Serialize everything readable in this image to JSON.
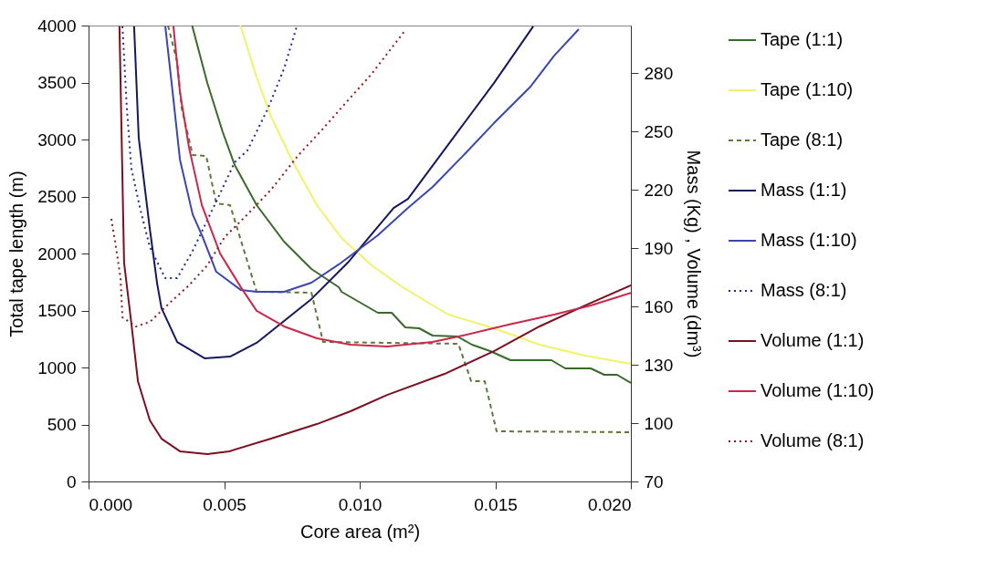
{
  "chart_data": {
    "type": "line",
    "xlabel": "Core area (m²)",
    "ylabel": "Total tape length (m)",
    "y2label": "Mass (Kg) , Volume (dm³)",
    "xlim": [
      0,
      0.02
    ],
    "xticks": [
      {
        "value": 0,
        "label": "0.000"
      },
      {
        "value": 0.005,
        "label": "0.005"
      },
      {
        "value": 0.01,
        "label": "0.010"
      },
      {
        "value": 0.015,
        "label": "0.015"
      },
      {
        "value": 0.02,
        "label": "0.020"
      }
    ],
    "ylim": [
      0,
      4000
    ],
    "yticks": [
      0,
      500,
      1000,
      1500,
      2000,
      2500,
      3000,
      3500,
      4000
    ],
    "y2lim": [
      70,
      304.4
    ],
    "y2ticks": [
      70,
      100,
      130,
      160,
      190,
      220,
      250,
      280
    ],
    "grid": false,
    "legend": "right",
    "series": [
      {
        "name": "Tape (1:1)",
        "color": "#3a6a2a",
        "line_style": "solid",
        "x": [
          0.00382,
          0.00438,
          0.00495,
          0.00539,
          0.0062,
          0.00721,
          0.00822,
          0.00923,
          0.00933,
          0.01067,
          0.01118,
          0.01168,
          0.01219,
          0.01269,
          0.0136,
          0.01414,
          0.01481,
          0.01556,
          0.01707,
          0.01758,
          0.01852,
          0.01902,
          0.01949,
          0.02
        ],
        "values": [
          4000,
          3496,
          3064,
          2776,
          2424,
          2104,
          1864,
          1704,
          1664,
          1480,
          1480,
          1352,
          1344,
          1280,
          1272,
          1200,
          1144,
          1064,
          1064,
          992,
          992,
          936,
          936,
          864
        ]
      },
      {
        "name": "Tape  (1:10)",
        "color": "#f2f26a",
        "line_style": "solid",
        "x": [
          0.0056,
          0.0062,
          0.00673,
          0.00754,
          0.00842,
          0.00933,
          0.01044,
          0.01158,
          0.01327,
          0.01495,
          0.01663,
          0.01832,
          0.02
        ],
        "values": [
          4000,
          3544,
          3200,
          2800,
          2424,
          2136,
          1896,
          1704,
          1464,
          1344,
          1200,
          1104,
          1032
        ]
      },
      {
        "name": "Tape (8:1)",
        "color": "#5a7a3a",
        "line_style": "dashed",
        "x": [
          0.00293,
          0.00327,
          0.00343,
          0.00384,
          0.00434,
          0.00471,
          0.00522,
          0.0062,
          0.00822,
          0.00865,
          0.01364,
          0.01411,
          0.01461,
          0.01505,
          0.02
        ],
        "values": [
          4000,
          3680,
          3280,
          2864,
          2856,
          2440,
          2424,
          1664,
          1656,
          1224,
          1208,
          880,
          880,
          440,
          432
        ]
      },
      {
        "name": "Mass (1:1)",
        "color": "#15185e",
        "line_style": "solid",
        "axis": "y2",
        "x": [
          0.00168,
          0.00185,
          0.00226,
          0.00253,
          0.00269,
          0.00327,
          0.00428,
          0.00522,
          0.0062,
          0.00822,
          0.00956,
          0.01125,
          0.01178,
          0.0136,
          0.01495,
          0.0164
        ],
        "values": [
          304,
          246.7,
          199.8,
          171.7,
          159.1,
          141.7,
          133.3,
          134.2,
          141.3,
          163.8,
          182.5,
          210.6,
          215.3,
          249.5,
          274.8,
          304
        ]
      },
      {
        "name": " Mass (1:10)",
        "color": "#3b46b0",
        "line_style": "solid",
        "axis": "y2",
        "x": [
          0.00283,
          0.0031,
          0.00337,
          0.00384,
          0.00418,
          0.00471,
          0.00562,
          0.0062,
          0.00721,
          0.00822,
          0.00923,
          0.01067,
          0.01178,
          0.01269,
          0.0138,
          0.01495,
          0.0163,
          0.01717,
          0.01808
        ],
        "values": [
          304,
          270.2,
          235.5,
          207.3,
          196.6,
          177.8,
          168.4,
          167.5,
          167.5,
          172.2,
          181.6,
          196.6,
          210.6,
          221.4,
          237.3,
          254.2,
          273,
          288.9,
          302.5
        ]
      },
      {
        "name": "Mass (8:1)",
        "color": "#1f2a8c",
        "line_style": "dotted",
        "axis": "y2",
        "x": [
          0.00125,
          0.00141,
          0.00158,
          0.00192,
          0.00226,
          0.00283,
          0.00327,
          0.00384,
          0.00471,
          0.00539,
          0.00586,
          0.00663,
          0.00721,
          0.00768
        ],
        "values": [
          304,
          262.2,
          230.8,
          209.2,
          190.5,
          174.5,
          174.5,
          188.6,
          213.9,
          234.1,
          240.2,
          262.2,
          282.3,
          304
        ]
      },
      {
        "name": "Volume (1:1)",
        "color": "#7a1020",
        "line_style": "solid",
        "axis": "y2",
        "x": [
          0.00114,
          0.00131,
          0.00158,
          0.00182,
          0.00226,
          0.00269,
          0.00337,
          0.00438,
          0.00519,
          0.00673,
          0.00842,
          0.00966,
          0.01101,
          0.01313,
          0.01495,
          0.01663,
          0.01832,
          0.02
        ],
        "values": [
          304,
          182.5,
          151.1,
          121.6,
          101.4,
          92,
          85.5,
          84.1,
          85.5,
          92,
          99.5,
          106.1,
          114.5,
          125.3,
          137,
          149.7,
          160.5,
          170.8
        ]
      },
      {
        "name": "Volume (1:10)",
        "color": "#c8284a",
        "line_style": "solid",
        "axis": "y2",
        "x": [
          0.00313,
          0.00337,
          0.0037,
          0.00418,
          0.00485,
          0.00562,
          0.0062,
          0.00721,
          0.00842,
          0.00966,
          0.01101,
          0.01269,
          0.0138,
          0.01549,
          0.01717,
          0.01852,
          0.02
        ],
        "values": [
          304,
          270.2,
          242,
          212,
          187.2,
          169.8,
          157.7,
          149.7,
          143.6,
          140.3,
          139.4,
          141.7,
          145,
          150.6,
          155.8,
          160.5,
          167
        ]
      },
      {
        "name": "Volume (8:1)",
        "color": "#8a1a1a",
        "line_style": "dotted",
        "axis": "y2",
        "x": [
          0.00084,
          0.00101,
          0.00118,
          0.00125,
          0.00175,
          0.00226,
          0.00303,
          0.0037,
          0.00438,
          0.00502,
          0.00586,
          0.00673,
          0.00774,
          0.00865,
          0.00933,
          0.01044,
          0.01168
        ],
        "values": [
          205,
          190.5,
          174.5,
          154.4,
          149.7,
          152,
          162.3,
          170.8,
          181.1,
          195.6,
          207.3,
          220,
          237.8,
          251.4,
          262.2,
          279.5,
          302
        ]
      }
    ]
  }
}
